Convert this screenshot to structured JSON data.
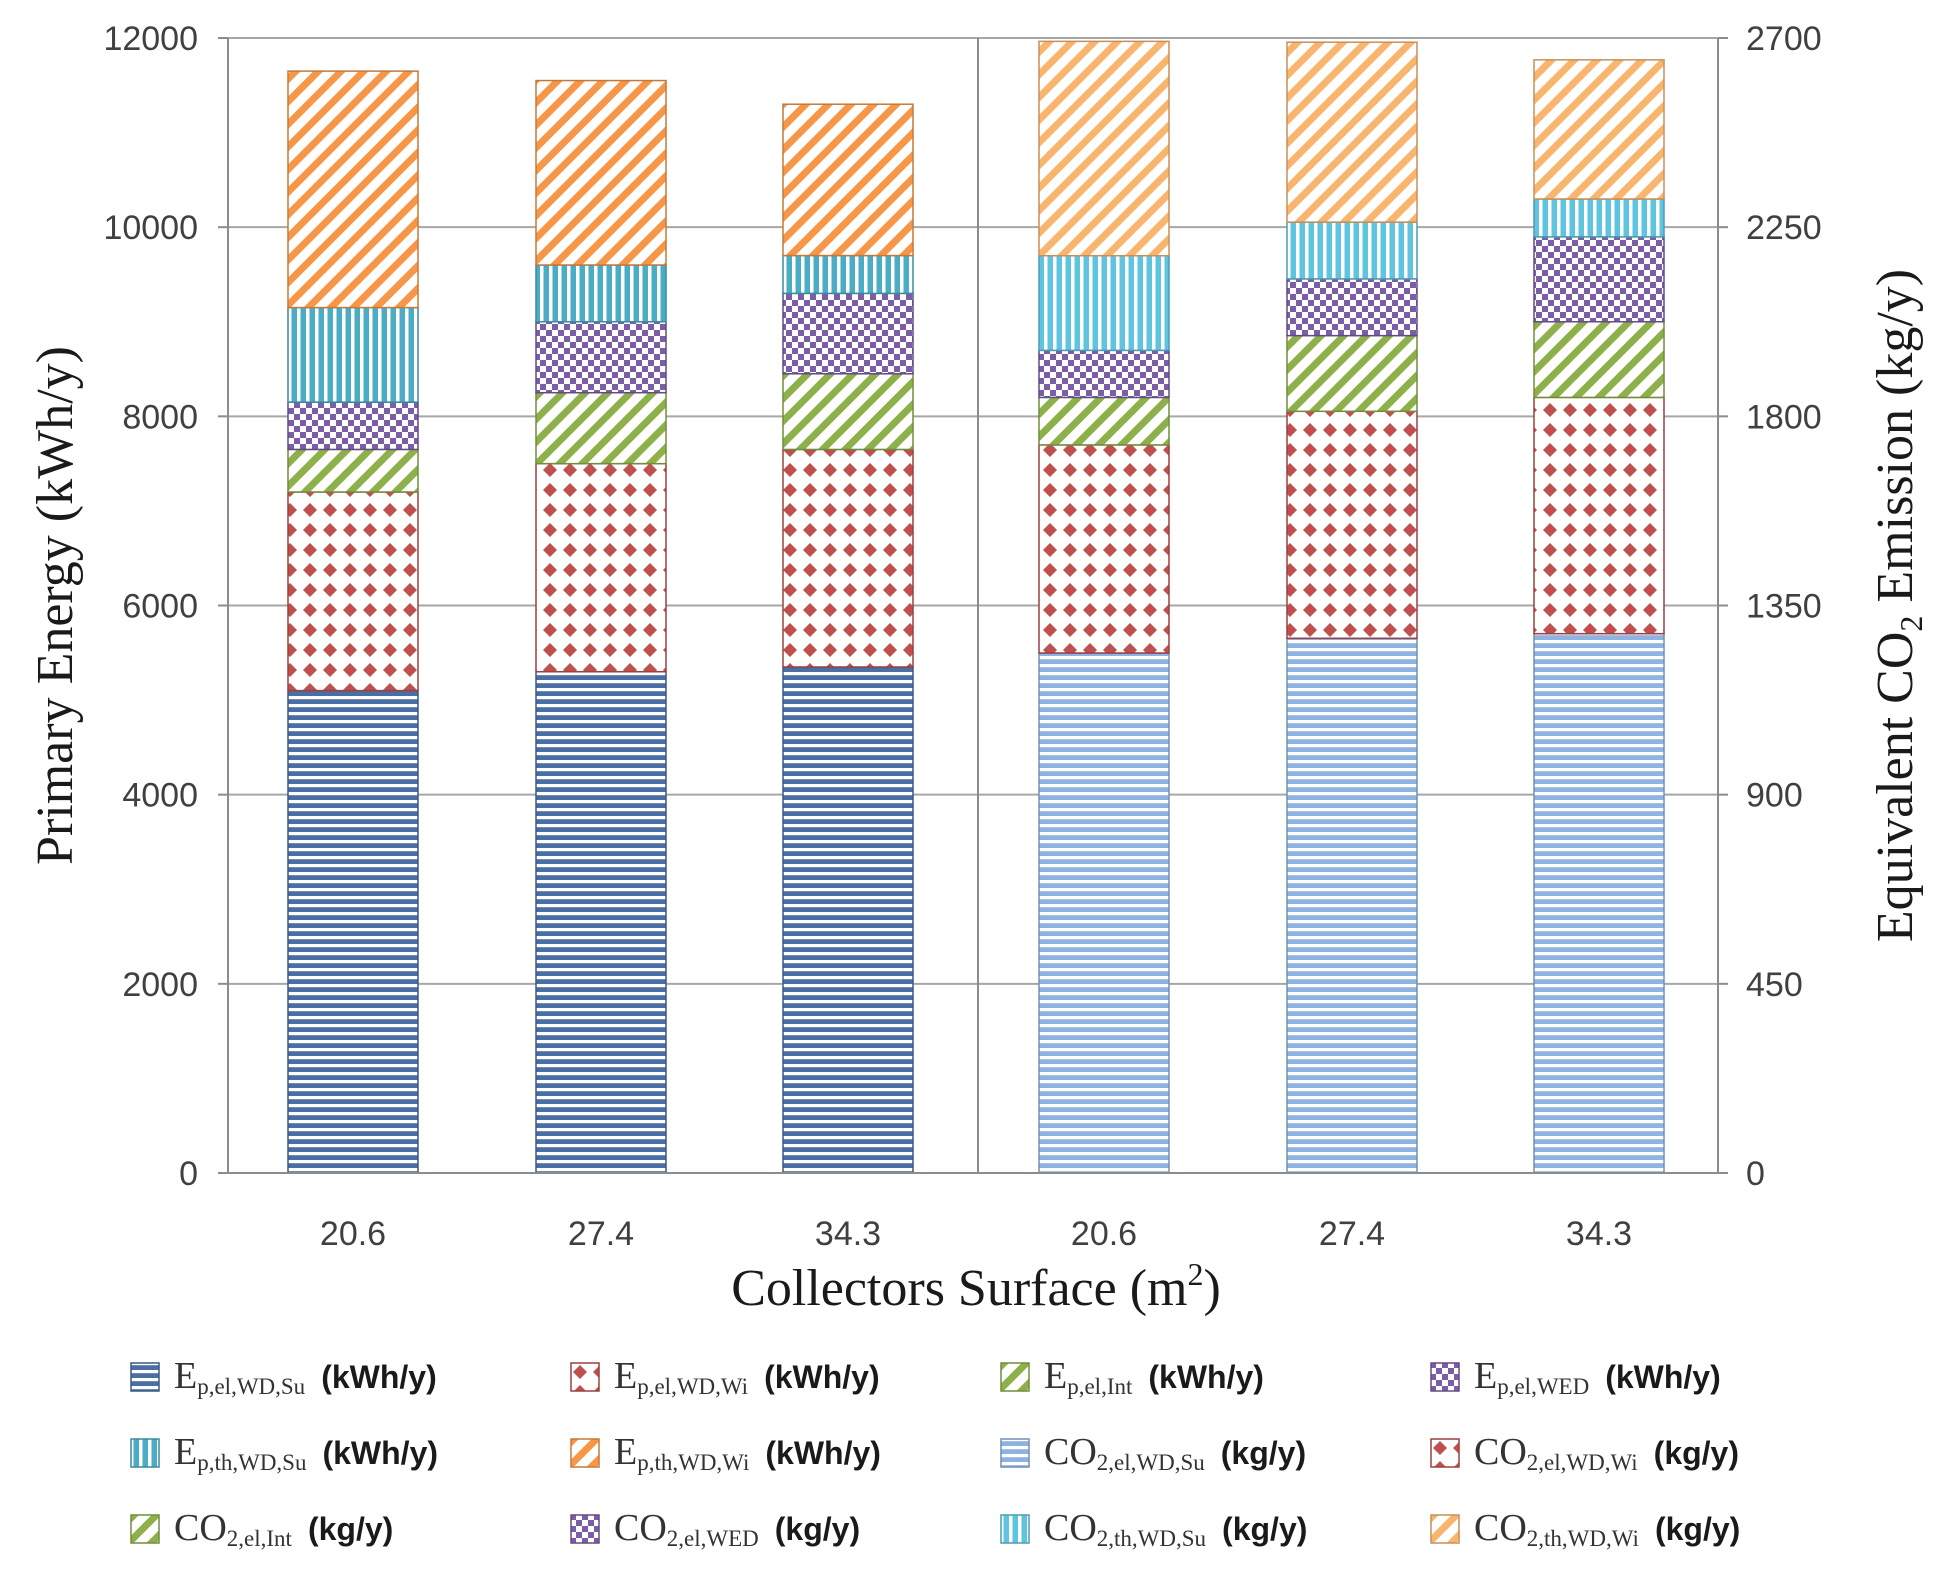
{
  "chart_data": {
    "type": "bar",
    "stacked": true,
    "xlabel": "Collectors Surface (m²)",
    "xlabel_main": "Collectors Surface (m",
    "xlabel_sup": "2",
    "xlabel_close": ")",
    "ylabel": "Primary Energy (kWh/y)",
    "y2label": "Equivalent CO₂ Emission (kg/y)",
    "y2label_parts": [
      "Equivalent CO",
      "2",
      " Emission (kg/y)"
    ],
    "ylim": [
      0,
      12000
    ],
    "y2lim": [
      0,
      2700
    ],
    "yticks": [
      "0",
      "2000",
      "4000",
      "6000",
      "8000",
      "10000",
      "12000"
    ],
    "y2ticks": [
      "0",
      "450",
      "900",
      "1350",
      "1800",
      "2250",
      "2700"
    ],
    "grid": true,
    "categories": [
      "20.6",
      "27.4",
      "34.3",
      "20.6",
      "27.4",
      "34.3"
    ],
    "groups": [
      {
        "name": "Primary Energy",
        "axis": "left",
        "category_indices": [
          0,
          1,
          2
        ],
        "series": [
          {
            "name": "Ep,el,WD,Su",
            "symbol": "E",
            "sub": "p,el,WD,Su",
            "unit": "(kWh/y)",
            "pattern": "hlines",
            "color": "#4a6fa5",
            "values": [
              5100,
              5300,
              5350
            ]
          },
          {
            "name": "Ep,el,WD,Wi",
            "symbol": "E",
            "sub": "p,el,WD,Wi",
            "unit": "(kWh/y)",
            "pattern": "diamonds",
            "color": "#c0504d",
            "values": [
              2100,
              2200,
              2300
            ]
          },
          {
            "name": "Ep,el,Int",
            "symbol": "E",
            "sub": "p,el,Int",
            "unit": "(kWh/y)",
            "pattern": "diag",
            "color": "#8db04a",
            "values": [
              450,
              750,
              800
            ]
          },
          {
            "name": "Ep,el,WED",
            "symbol": "E",
            "sub": "p,el,WED",
            "unit": "(kWh/y)",
            "pattern": "checker",
            "color": "#7b5ea7",
            "values": [
              500,
              750,
              850
            ]
          },
          {
            "name": "Ep,th,WD,Su",
            "symbol": "E",
            "sub": "p,th,WD,Su",
            "unit": "(kWh/y)",
            "pattern": "vlines",
            "color": "#4bacc6",
            "values": [
              1000,
              600,
              400
            ]
          },
          {
            "name": "Ep,th,WD,Wi",
            "symbol": "E",
            "sub": "p,th,WD,Wi",
            "unit": "(kWh/y)",
            "pattern": "diag",
            "color": "#f79646",
            "values": [
              2500,
              1950,
              1600
            ]
          }
        ]
      },
      {
        "name": "Equivalent CO2 Emission",
        "axis": "right",
        "category_indices": [
          3,
          4,
          5
        ],
        "series": [
          {
            "name": "CO2,el,WD,Su",
            "symbol": "CO",
            "sub": "2,el,WD,Su",
            "unit": "(kg/y)",
            "pattern": "hlines",
            "color": "#8fb3e0",
            "values": [
              1237,
              1272,
              1283
            ]
          },
          {
            "name": "CO2,el,WD,Wi",
            "symbol": "CO",
            "sub": "2,el,WD,Wi",
            "unit": "(kg/y)",
            "pattern": "diamonds",
            "color": "#c0504d",
            "values": [
              495,
              540,
              562
            ]
          },
          {
            "name": "CO2,el,Int",
            "symbol": "CO",
            "sub": "2,el,Int",
            "unit": "(kg/y)",
            "pattern": "diag",
            "color": "#8db04a",
            "values": [
              113,
              180,
              180
            ]
          },
          {
            "name": "CO2,el,WED",
            "symbol": "CO",
            "sub": "2,el,WED",
            "unit": "(kg/y)",
            "pattern": "checker",
            "color": "#7b5ea7",
            "values": [
              112,
              135,
              202
            ]
          },
          {
            "name": "CO2,th,WD,Su",
            "symbol": "CO",
            "sub": "2,th,WD,Su",
            "unit": "(kg/y)",
            "pattern": "vlines",
            "color": "#5ec4e0",
            "values": [
              225,
              135,
              90
            ]
          },
          {
            "name": "CO2,th,WD,Wi",
            "symbol": "CO",
            "sub": "2,th,WD,Wi",
            "unit": "(kg/y)",
            "pattern": "diag",
            "color": "#f9b46e",
            "values": [
              510,
              428,
              331
            ]
          }
        ]
      }
    ]
  }
}
